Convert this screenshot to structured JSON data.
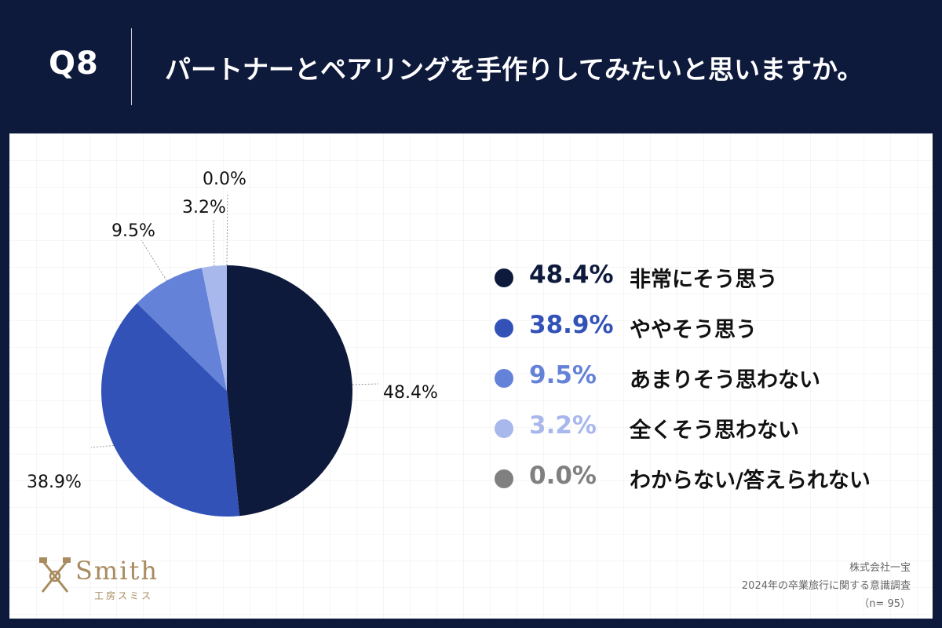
{
  "header": {
    "question_number": "Q8",
    "question_text": "パートナーとペアリングを手作りしてみたいと思いますか。"
  },
  "chart_data": {
    "type": "pie",
    "title": "パートナーとペアリングを手作りしてみたいと思いますか。",
    "start": "12 o'clock, clockwise",
    "slices": [
      {
        "label": "非常にそう思う",
        "value": 48.4,
        "value_text": "48.4%",
        "color": "#0e1a3c"
      },
      {
        "label": "ややそう思う",
        "value": 38.9,
        "value_text": "38.9%",
        "color": "#3352b8"
      },
      {
        "label": "あまりそう思わない",
        "value": 9.5,
        "value_text": "9.5%",
        "color": "#6482d8"
      },
      {
        "label": "全くそう思わない",
        "value": 3.2,
        "value_text": "3.2%",
        "color": "#a8b8ec"
      },
      {
        "label": "わからない/答えられない",
        "value": 0.0,
        "value_text": "0.0%",
        "color": "#808080"
      }
    ],
    "legend_position": "right"
  },
  "footer": {
    "logo_name": "Smith",
    "logo_sub": "工房スミス",
    "source_company": "株式会社一宝",
    "source_survey": "2024年の卒業旅行に関する意識調査",
    "sample_size": "（n= 95）",
    "logo_color": "#a88b5e"
  }
}
